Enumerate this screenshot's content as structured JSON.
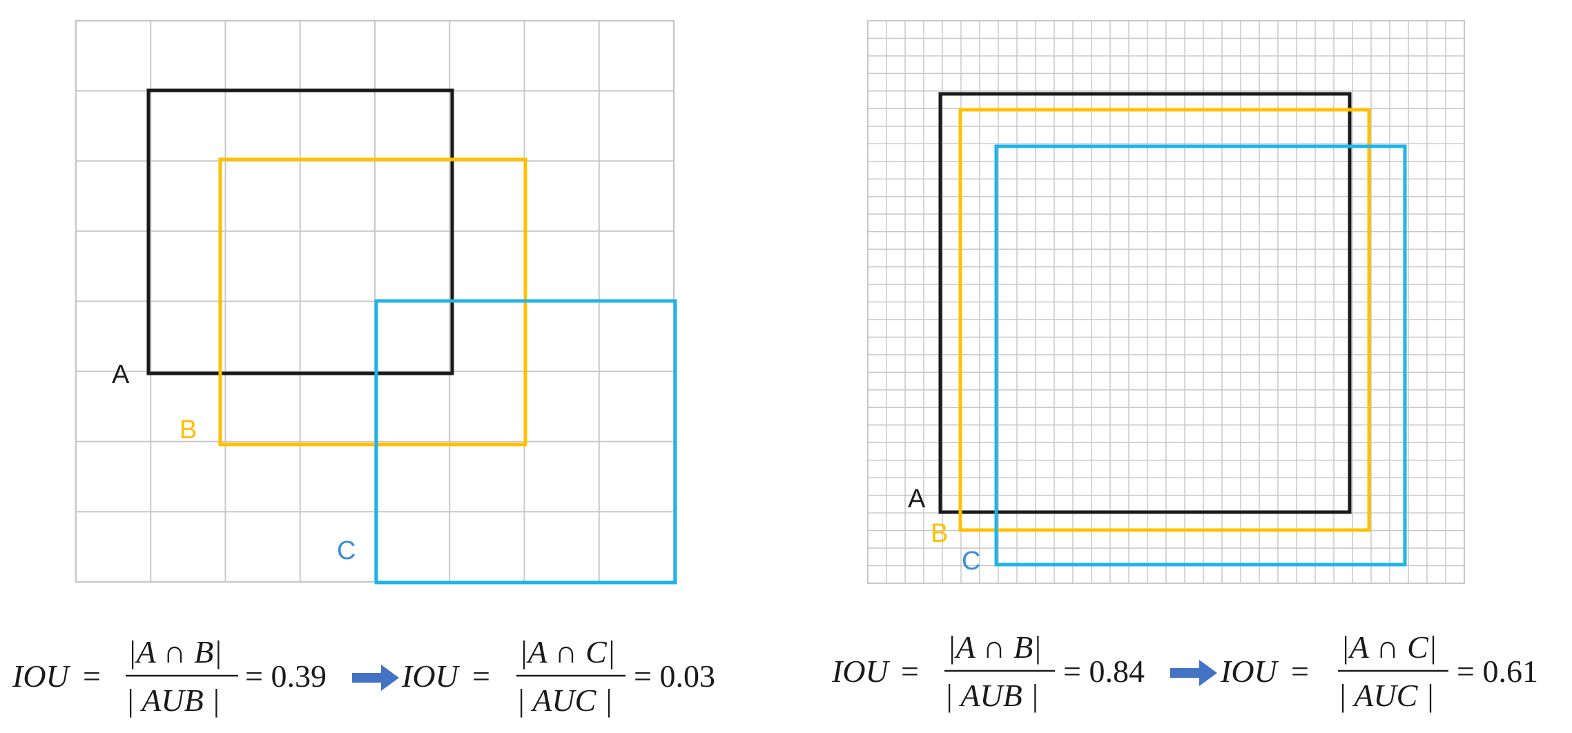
{
  "colors": {
    "grid": "#c8c8c8",
    "box_a": "#1a1a1a",
    "box_b": "#ffc000",
    "box_c": "#1fb4e8",
    "label_c": "#3a8fdc",
    "arrow": "#4472c4"
  },
  "panels": [
    {
      "grid_cells": 8,
      "labels": {
        "a": "A",
        "b": "B",
        "c": "C"
      },
      "equations": [
        {
          "lhs": "IOU",
          "numerator": "|A ∩ B|",
          "denominator": "| AUB |",
          "result": "= 0.39"
        },
        {
          "lhs": "IOU",
          "numerator": "|A ∩ C|",
          "denominator": "| AUC |",
          "result": "= 0.03"
        }
      ]
    },
    {
      "grid_cells": 32,
      "labels": {
        "a": "A",
        "b": "B",
        "c": "C"
      },
      "equations": [
        {
          "lhs": "IOU",
          "numerator": "|A ∩ B|",
          "denominator": "| AUB |",
          "result": "= 0.84"
        },
        {
          "lhs": "IOU",
          "numerator": "|A ∩ C|",
          "denominator": "| AUC |",
          "result": "= 0.61"
        }
      ]
    }
  ]
}
